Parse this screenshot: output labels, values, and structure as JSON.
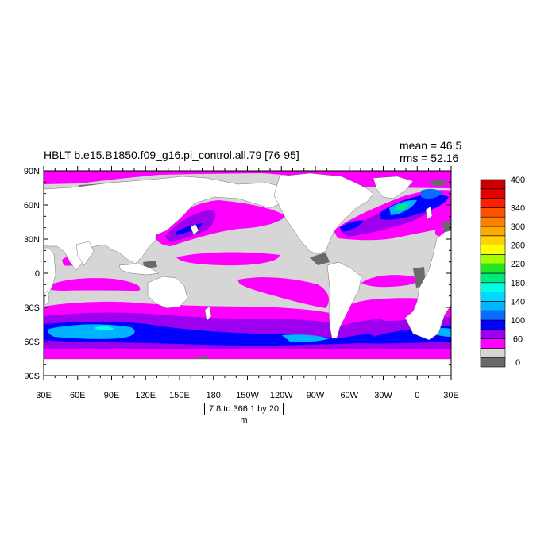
{
  "title": "HBLT b.e15.B1850.f09_g16.pi_control.all.79 [76-95]",
  "stats": {
    "mean": "mean = 46.5",
    "rms": "rms = 52.16"
  },
  "axes": {
    "lat_labels": [
      "90N",
      "60N",
      "30N",
      "0",
      "30S",
      "60S",
      "90S"
    ],
    "lon_labels": [
      "30E",
      "60E",
      "90E",
      "120E",
      "150E",
      "180",
      "150W",
      "120W",
      "90W",
      "60W",
      "30W",
      "0",
      "30E"
    ]
  },
  "contour_info": "7.8 to 366.1 by 20 m",
  "colorbar": {
    "labels": [
      "400",
      "340",
      "300",
      "260",
      "220",
      "180",
      "140",
      "100",
      "60",
      "0"
    ],
    "colors": [
      "#6a6a6a",
      "#d6d6d6",
      "#ff00ff",
      "#9d00ee",
      "#0000ff",
      "#0a6cff",
      "#00b4ff",
      "#00d8ff",
      "#00ffe0",
      "#00e880",
      "#22e622",
      "#a0ff00",
      "#ffff00",
      "#ffd200",
      "#ffa800",
      "#ff8000",
      "#ff5000",
      "#ff1e00",
      "#e60000",
      "#c80000"
    ]
  },
  "colors": {
    "land": "#ffffff",
    "ocean_low": "#d6d6d6",
    "ocean_missing": "#6a6a6a"
  }
}
